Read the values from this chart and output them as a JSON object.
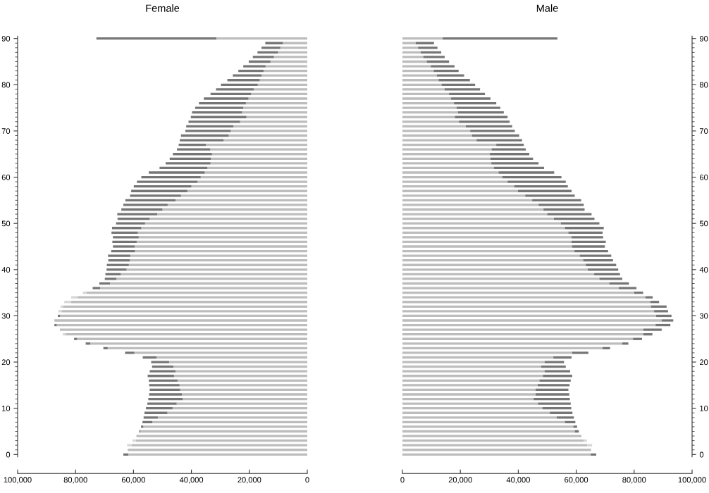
{
  "chart_data": [
    {
      "type": "bar",
      "title": "Female",
      "orientation": "horizontal",
      "stacked": true,
      "x": [
        0,
        1,
        2,
        3,
        4,
        5,
        6,
        7,
        8,
        9,
        10,
        11,
        12,
        13,
        14,
        15,
        16,
        17,
        18,
        19,
        20,
        21,
        22,
        23,
        24,
        25,
        26,
        27,
        28,
        29,
        30,
        31,
        32,
        33,
        34,
        35,
        36,
        37,
        38,
        39,
        40,
        41,
        42,
        43,
        44,
        45,
        46,
        47,
        48,
        49,
        50,
        51,
        52,
        53,
        54,
        55,
        56,
        57,
        58,
        59,
        60,
        61,
        62,
        63,
        64,
        65,
        66,
        67,
        68,
        69,
        70,
        71,
        72,
        73,
        74,
        75,
        76,
        77,
        78,
        79,
        80,
        81,
        82,
        83,
        84,
        85,
        86,
        87,
        88,
        89,
        90
      ],
      "series": [
        {
          "color": "#bdbdbd",
          "values": [
            61800,
            62000,
            60600,
            59200,
            59000,
            57600,
            56600,
            53500,
            51600,
            48300,
            46500,
            45100,
            43000,
            43300,
            43900,
            44100,
            44800,
            46000,
            45500,
            46200,
            47700,
            52000,
            59700,
            68900,
            74900,
            79500,
            83400,
            85400,
            86500,
            87300,
            85400,
            84800,
            84200,
            81500,
            79300,
            76300,
            71500,
            68100,
            65900,
            64400,
            62400,
            61600,
            61300,
            61100,
            59500,
            59600,
            58900,
            58200,
            58500,
            57300,
            56000,
            54400,
            51800,
            50000,
            48200,
            45500,
            43600,
            41400,
            40000,
            37900,
            36800,
            35400,
            34500,
            33400,
            33300,
            32900,
            33500,
            35000,
            28900,
            27100,
            26400,
            25500,
            23200,
            21000,
            22500,
            22100,
            21200,
            20300,
            19400,
            18500,
            17100,
            16400,
            15800,
            15100,
            14400,
            12700,
            11500,
            10100,
            9300,
            8400,
            31400
          ]
        },
        {
          "color": "#767676",
          "values": [
            1700,
            null,
            null,
            null,
            null,
            400,
            800,
            3400,
            4900,
            7900,
            9200,
            10100,
            11900,
            11300,
            10500,
            10500,
            9900,
            9100,
            8900,
            7400,
            6200,
            4800,
            3200,
            1500,
            1600,
            1000,
            null,
            null,
            800,
            null,
            700,
            null,
            null,
            null,
            null,
            null,
            2600,
            3700,
            4000,
            5300,
            6900,
            7600,
            7400,
            7700,
            8200,
            7500,
            8400,
            8900,
            9100,
            10100,
            10000,
            11100,
            13800,
            14200,
            15300,
            17300,
            17600,
            19400,
            19900,
            20900,
            20500,
            19300,
            16500,
            15500,
            14200,
            13500,
            11500,
            9400,
            15100,
            16500,
            15700,
            16300,
            17800,
            19200,
            17300,
            16600,
            16200,
            15400,
            14000,
            13000,
            12700,
            11200,
            9900,
            8700,
            7700,
            7500,
            7300,
            7100,
            6500,
            6100,
            41400
          ]
        },
        {
          "color": "#d6d6d6",
          "values": [
            null,
            null,
            1600,
            1100,
            null,
            null,
            null,
            null,
            null,
            null,
            null,
            null,
            null,
            null,
            null,
            null,
            null,
            null,
            null,
            null,
            null,
            null,
            null,
            null,
            null,
            null,
            1000,
            null,
            null,
            null,
            null,
            1100,
            1000,
            2400,
            2200,
            1200,
            null,
            null,
            null,
            null,
            null,
            null,
            null,
            null,
            null,
            null,
            null,
            null,
            null,
            null,
            null,
            null,
            null,
            null,
            null,
            null,
            null,
            null,
            null,
            null,
            null,
            null,
            null,
            null,
            null,
            null,
            null,
            null,
            null,
            null,
            null,
            null,
            null,
            null,
            null,
            null,
            null,
            null,
            null,
            null,
            null,
            null,
            null,
            null,
            null,
            null,
            null,
            null,
            null,
            null,
            null
          ]
        }
      ],
      "xlim": [
        100000,
        0
      ],
      "xticks": [
        {
          "value": 100000,
          "label": "100,000"
        },
        {
          "value": 80000,
          "label": "80,000"
        },
        {
          "value": 60000,
          "label": "60,000"
        },
        {
          "value": 40000,
          "label": "40,000"
        },
        {
          "value": 20000,
          "label": "20,000"
        },
        0
      ],
      "ylim": [
        -0.5,
        90.5
      ],
      "yticks": [
        0,
        {
          "value": 1,
          "label": null
        },
        {
          "value": 2,
          "label": null
        },
        {
          "value": 3,
          "label": null
        },
        {
          "value": 4,
          "label": null
        },
        {
          "value": 5,
          "label": null
        },
        {
          "value": 6,
          "label": null
        },
        {
          "value": 7,
          "label": null
        },
        {
          "value": 8,
          "label": null
        },
        {
          "value": 9,
          "label": null
        },
        10,
        {
          "value": 11,
          "label": null
        },
        {
          "value": 12,
          "label": null
        },
        {
          "value": 13,
          "label": null
        },
        {
          "value": 14,
          "label": null
        },
        {
          "value": 15,
          "label": null
        },
        {
          "value": 16,
          "label": null
        },
        {
          "value": 17,
          "label": null
        },
        {
          "value": 18,
          "label": null
        },
        {
          "value": 19,
          "label": null
        },
        20,
        {
          "value": 21,
          "label": null
        },
        {
          "value": 22,
          "label": null
        },
        {
          "value": 23,
          "label": null
        },
        {
          "value": 24,
          "label": null
        },
        {
          "value": 25,
          "label": null
        },
        {
          "value": 26,
          "label": null
        },
        {
          "value": 27,
          "label": null
        },
        {
          "value": 28,
          "label": null
        },
        {
          "value": 29,
          "label": null
        },
        30,
        {
          "value": 31,
          "label": null
        },
        {
          "value": 32,
          "label": null
        },
        {
          "value": 33,
          "label": null
        },
        {
          "value": 34,
          "label": null
        },
        {
          "value": 35,
          "label": null
        },
        {
          "value": 36,
          "label": null
        },
        {
          "value": 37,
          "label": null
        },
        {
          "value": 38,
          "label": null
        },
        {
          "value": 39,
          "label": null
        },
        40,
        {
          "value": 41,
          "label": null
        },
        {
          "value": 42,
          "label": null
        },
        {
          "value": 43,
          "label": null
        },
        {
          "value": 44,
          "label": null
        },
        {
          "value": 45,
          "label": null
        },
        {
          "value": 46,
          "label": null
        },
        {
          "value": 47,
          "label": null
        },
        {
          "value": 48,
          "label": null
        },
        {
          "value": 49,
          "label": null
        },
        50,
        {
          "value": 51,
          "label": null
        },
        {
          "value": 52,
          "label": null
        },
        {
          "value": 53,
          "label": null
        },
        {
          "value": 54,
          "label": null
        },
        {
          "value": 55,
          "label": null
        },
        {
          "value": 56,
          "label": null
        },
        {
          "value": 57,
          "label": null
        },
        {
          "value": 58,
          "label": null
        },
        {
          "value": 59,
          "label": null
        },
        60,
        {
          "value": 61,
          "label": null
        },
        {
          "value": 62,
          "label": null
        },
        {
          "value": 63,
          "label": null
        },
        {
          "value": 64,
          "label": null
        },
        {
          "value": 65,
          "label": null
        },
        {
          "value": 66,
          "label": null
        },
        {
          "value": 67,
          "label": null
        },
        {
          "value": 68,
          "label": null
        },
        {
          "value": 69,
          "label": null
        },
        70,
        {
          "value": 71,
          "label": null
        },
        {
          "value": 72,
          "label": null
        },
        {
          "value": 73,
          "label": null
        },
        {
          "value": 74,
          "label": null
        },
        {
          "value": 75,
          "label": null
        },
        {
          "value": 76,
          "label": null
        },
        {
          "value": 77,
          "label": null
        },
        {
          "value": 78,
          "label": null
        },
        {
          "value": 79,
          "label": null
        },
        80,
        {
          "value": 81,
          "label": null
        },
        {
          "value": 82,
          "label": null
        },
        {
          "value": 83,
          "label": null
        },
        {
          "value": 84,
          "label": null
        },
        {
          "value": 85,
          "label": null
        },
        {
          "value": 86,
          "label": null
        },
        {
          "value": 87,
          "label": null
        },
        {
          "value": 88,
          "label": null
        },
        {
          "value": 89,
          "label": null
        },
        90
      ]
    },
    {
      "type": "bar",
      "title": "Male",
      "orientation": "horizontal",
      "stacked": true,
      "x": [
        0,
        1,
        2,
        3,
        4,
        5,
        6,
        7,
        8,
        9,
        10,
        11,
        12,
        13,
        14,
        15,
        16,
        17,
        18,
        19,
        20,
        21,
        22,
        23,
        24,
        25,
        26,
        27,
        28,
        29,
        30,
        31,
        32,
        33,
        34,
        35,
        36,
        37,
        38,
        39,
        40,
        41,
        42,
        43,
        44,
        45,
        46,
        47,
        48,
        49,
        50,
        51,
        52,
        53,
        54,
        55,
        56,
        57,
        58,
        59,
        60,
        61,
        62,
        63,
        64,
        65,
        66,
        67,
        68,
        69,
        70,
        71,
        72,
        73,
        74,
        75,
        76,
        77,
        78,
        79,
        80,
        81,
        82,
        83,
        84,
        85,
        86,
        87,
        88,
        89,
        90
      ],
      "series": [
        {
          "color": "#bdbdbd",
          "values": [
            65000,
            65100,
            63800,
            62600,
            61800,
            59500,
            59000,
            56100,
            53300,
            50900,
            48300,
            46800,
            45300,
            46000,
            46000,
            46700,
            47300,
            48500,
            49100,
            47900,
            49100,
            52100,
            58600,
            69100,
            75900,
            79600,
            83200,
            83200,
            87400,
            89500,
            87600,
            86900,
            85800,
            85600,
            83900,
            80000,
            74700,
            71400,
            68000,
            66200,
            64000,
            63300,
            62400,
            61200,
            59400,
            58600,
            58400,
            58400,
            57300,
            56100,
            54700,
            52300,
            50000,
            48700,
            47000,
            44800,
            42400,
            39900,
            38600,
            36300,
            34500,
            33200,
            31600,
            30700,
            30400,
            30200,
            30800,
            32400,
            25600,
            24000,
            23400,
            21900,
            19500,
            18100,
            19200,
            18700,
            17800,
            16800,
            16100,
            14600,
            13500,
            12500,
            11900,
            10800,
            9800,
            8400,
            7200,
            6300,
            5400,
            4600,
            13900
          ]
        },
        {
          "color": "#767676",
          "values": [
            1900,
            null,
            null,
            null,
            null,
            1400,
            1300,
            3600,
            5900,
            7800,
            10000,
            11300,
            12500,
            11600,
            11300,
            11000,
            10800,
            10100,
            8800,
            8500,
            6700,
            6300,
            5600,
            2600,
            2100,
            3100,
            3100,
            6300,
            5100,
            4000,
            5300,
            4800,
            5400,
            3000,
            2500,
            3100,
            6100,
            6800,
            7900,
            8900,
            10500,
            10500,
            10300,
            10900,
            11600,
            11300,
            11800,
            10900,
            11800,
            13400,
            13300,
            14000,
            15300,
            14200,
            15600,
            16900,
            17100,
            18500,
            18500,
            20100,
            20400,
            19200,
            17300,
            16300,
            14700,
            13600,
            11800,
            9500,
            15700,
            16300,
            15400,
            16000,
            17500,
            18200,
            15800,
            15100,
            14600,
            13600,
            12400,
            12200,
            11600,
            10800,
            9400,
            8600,
            8200,
            7700,
            7400,
            7100,
            6700,
            6300,
            39600
          ]
        },
        {
          "color": "#d6d6d6",
          "values": [
            null,
            null,
            1700,
            1100,
            null,
            null,
            null,
            null,
            null,
            null,
            null,
            null,
            null,
            null,
            null,
            null,
            null,
            null,
            null,
            null,
            null,
            null,
            null,
            null,
            null,
            null,
            null,
            null,
            null,
            null,
            null,
            null,
            null,
            null,
            null,
            null,
            null,
            null,
            null,
            null,
            null,
            null,
            null,
            null,
            null,
            null,
            null,
            null,
            null,
            null,
            null,
            null,
            null,
            null,
            null,
            null,
            null,
            null,
            null,
            null,
            null,
            null,
            null,
            null,
            null,
            null,
            null,
            null,
            null,
            null,
            null,
            null,
            null,
            null,
            null,
            null,
            null,
            null,
            null,
            null,
            null,
            null,
            null,
            null,
            null,
            null,
            null,
            null,
            null,
            null,
            null
          ]
        }
      ],
      "xlim": [
        0,
        100000
      ],
      "xticks": [
        0,
        {
          "value": 20000,
          "label": "20,000"
        },
        {
          "value": 40000,
          "label": "40,000"
        },
        {
          "value": 60000,
          "label": "60,000"
        },
        {
          "value": 80000,
          "label": "80,000"
        },
        {
          "value": 100000,
          "label": "100,000"
        }
      ],
      "ylim": [
        -0.5,
        90.5
      ],
      "yticks": [
        0,
        {
          "value": 1,
          "label": null
        },
        {
          "value": 2,
          "label": null
        },
        {
          "value": 3,
          "label": null
        },
        {
          "value": 4,
          "label": null
        },
        {
          "value": 5,
          "label": null
        },
        {
          "value": 6,
          "label": null
        },
        {
          "value": 7,
          "label": null
        },
        {
          "value": 8,
          "label": null
        },
        {
          "value": 9,
          "label": null
        },
        10,
        {
          "value": 11,
          "label": null
        },
        {
          "value": 12,
          "label": null
        },
        {
          "value": 13,
          "label": null
        },
        {
          "value": 14,
          "label": null
        },
        {
          "value": 15,
          "label": null
        },
        {
          "value": 16,
          "label": null
        },
        {
          "value": 17,
          "label": null
        },
        {
          "value": 18,
          "label": null
        },
        {
          "value": 19,
          "label": null
        },
        20,
        {
          "value": 21,
          "label": null
        },
        {
          "value": 22,
          "label": null
        },
        {
          "value": 23,
          "label": null
        },
        {
          "value": 24,
          "label": null
        },
        {
          "value": 25,
          "label": null
        },
        {
          "value": 26,
          "label": null
        },
        {
          "value": 27,
          "label": null
        },
        {
          "value": 28,
          "label": null
        },
        {
          "value": 29,
          "label": null
        },
        30,
        {
          "value": 31,
          "label": null
        },
        {
          "value": 32,
          "label": null
        },
        {
          "value": 33,
          "label": null
        },
        {
          "value": 34,
          "label": null
        },
        {
          "value": 35,
          "label": null
        },
        {
          "value": 36,
          "label": null
        },
        {
          "value": 37,
          "label": null
        },
        {
          "value": 38,
          "label": null
        },
        {
          "value": 39,
          "label": null
        },
        40,
        {
          "value": 41,
          "label": null
        },
        {
          "value": 42,
          "label": null
        },
        {
          "value": 43,
          "label": null
        },
        {
          "value": 44,
          "label": null
        },
        {
          "value": 45,
          "label": null
        },
        {
          "value": 46,
          "label": null
        },
        {
          "value": 47,
          "label": null
        },
        {
          "value": 48,
          "label": null
        },
        {
          "value": 49,
          "label": null
        },
        50,
        {
          "value": 51,
          "label": null
        },
        {
          "value": 52,
          "label": null
        },
        {
          "value": 53,
          "label": null
        },
        {
          "value": 54,
          "label": null
        },
        {
          "value": 55,
          "label": null
        },
        {
          "value": 56,
          "label": null
        },
        {
          "value": 57,
          "label": null
        },
        {
          "value": 58,
          "label": null
        },
        {
          "value": 59,
          "label": null
        },
        60,
        {
          "value": 61,
          "label": null
        },
        {
          "value": 62,
          "label": null
        },
        {
          "value": 63,
          "label": null
        },
        {
          "value": 64,
          "label": null
        },
        {
          "value": 65,
          "label": null
        },
        {
          "value": 66,
          "label": null
        },
        {
          "value": 67,
          "label": null
        },
        {
          "value": 68,
          "label": null
        },
        {
          "value": 69,
          "label": null
        },
        70,
        {
          "value": 71,
          "label": null
        },
        {
          "value": 72,
          "label": null
        },
        {
          "value": 73,
          "label": null
        },
        {
          "value": 74,
          "label": null
        },
        {
          "value": 75,
          "label": null
        },
        {
          "value": 76,
          "label": null
        },
        {
          "value": 77,
          "label": null
        },
        {
          "value": 78,
          "label": null
        },
        {
          "value": 79,
          "label": null
        },
        80,
        {
          "value": 81,
          "label": null
        },
        {
          "value": 82,
          "label": null
        },
        {
          "value": 83,
          "label": null
        },
        {
          "value": 84,
          "label": null
        },
        {
          "value": 85,
          "label": null
        },
        {
          "value": 86,
          "label": null
        },
        {
          "value": 87,
          "label": null
        },
        {
          "value": 88,
          "label": null
        },
        {
          "value": 89,
          "label": null
        },
        90
      ]
    }
  ]
}
